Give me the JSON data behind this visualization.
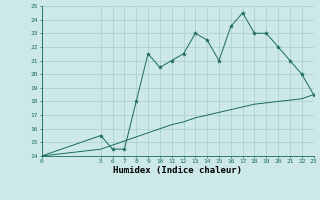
{
  "xlabel": "Humidex (Indice chaleur)",
  "x_values": [
    0,
    5,
    6,
    7,
    8,
    9,
    10,
    11,
    12,
    13,
    14,
    15,
    16,
    17,
    18,
    19,
    20,
    21,
    22,
    23
  ],
  "y_humidex": [
    14,
    15.5,
    14.5,
    14.5,
    18,
    21.5,
    20.5,
    21,
    21.5,
    23,
    22.5,
    21,
    23.5,
    24.5,
    23,
    23,
    22,
    21,
    20,
    18.5
  ],
  "y_line2": [
    14,
    14.5,
    14.8,
    15.1,
    15.4,
    15.7,
    16.0,
    16.3,
    16.5,
    16.8,
    17.0,
    17.2,
    17.4,
    17.6,
    17.8,
    17.9,
    18.0,
    18.1,
    18.2,
    18.5
  ],
  "ylim": [
    14,
    25
  ],
  "xlim": [
    0,
    23
  ],
  "yticks": [
    14,
    15,
    16,
    17,
    18,
    19,
    20,
    21,
    22,
    23,
    24,
    25
  ],
  "xticks": [
    0,
    5,
    6,
    7,
    8,
    9,
    10,
    11,
    12,
    13,
    14,
    15,
    16,
    17,
    18,
    19,
    20,
    21,
    22,
    23
  ],
  "line_color": "#1a6b5a",
  "bg_color": "#cce8e8",
  "grid_color": "#a8cccc"
}
